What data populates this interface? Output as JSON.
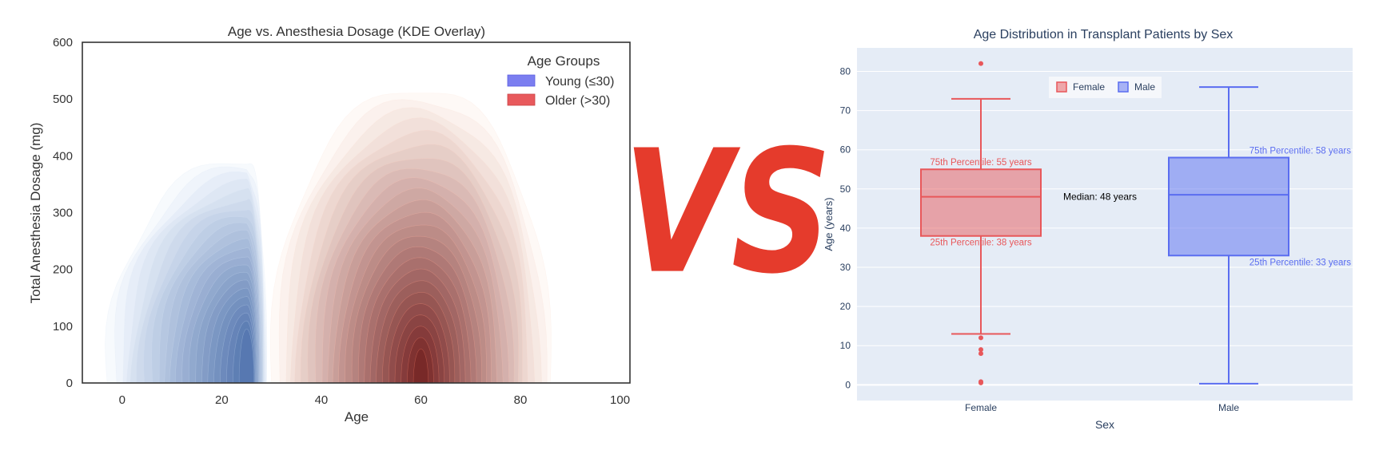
{
  "chart_data": [
    {
      "type": "kde",
      "title": "Age vs. Anesthesia Dosage (KDE Overlay)",
      "xlabel": "Age",
      "ylabel": "Total Anesthesia Dosage (mg)",
      "xlim": [
        -8,
        102
      ],
      "ylim": [
        0,
        600
      ],
      "xticks": [
        0,
        20,
        40,
        60,
        80,
        100
      ],
      "yticks": [
        0,
        100,
        200,
        300,
        400,
        500,
        600
      ],
      "grid": false,
      "legend": {
        "title": "Age Groups",
        "position": "top-right"
      },
      "series": [
        {
          "name": "Young (≤30)",
          "color": "#4c72d8",
          "peak": {
            "x": 25,
            "y": 70
          },
          "outer_extent": {
            "x": [
              -3,
              29
            ],
            "y": [
              0,
              395
            ]
          }
        },
        {
          "name": "Older (>30)",
          "color": "#d7301f",
          "peak": {
            "x": 60,
            "y": 45
          },
          "outer_extent": {
            "x": [
              30,
              86
            ],
            "y": [
              0,
              520
            ]
          }
        }
      ]
    },
    {
      "type": "box",
      "title": "Age Distribution in Transplant Patients by Sex",
      "xlabel": "Sex",
      "ylabel": "Age (years)",
      "categories": [
        "Female",
        "Male"
      ],
      "ylim": [
        -4,
        86
      ],
      "yticks": [
        0,
        10,
        20,
        30,
        40,
        50,
        60,
        70,
        80
      ],
      "grid": true,
      "legend": {
        "position": "top-center"
      },
      "series": [
        {
          "name": "Female",
          "color": "#e8575a",
          "min": 13,
          "q1": 38,
          "median": 48,
          "q3": 55,
          "max": 73,
          "outliers": [
            82,
            12,
            9,
            8,
            0.8,
            0.5
          ]
        },
        {
          "name": "Male",
          "color": "#5a6df0",
          "min": 0.3,
          "q1": 33,
          "median": 48.5,
          "q3": 58,
          "max": 76,
          "outliers": []
        }
      ],
      "annotations": [
        {
          "text": "75th Percentile: 55 years",
          "series": "Female"
        },
        {
          "text": "25th Percentile: 38 years",
          "series": "Female"
        },
        {
          "text": "Median: 48 years",
          "series": "Female"
        },
        {
          "text": "75th Percentile: 58 years",
          "series": "Male"
        },
        {
          "text": "25th Percentile: 33 years",
          "series": "Male"
        }
      ]
    }
  ],
  "separator": {
    "text": "VS",
    "color": "#e53b2c"
  }
}
